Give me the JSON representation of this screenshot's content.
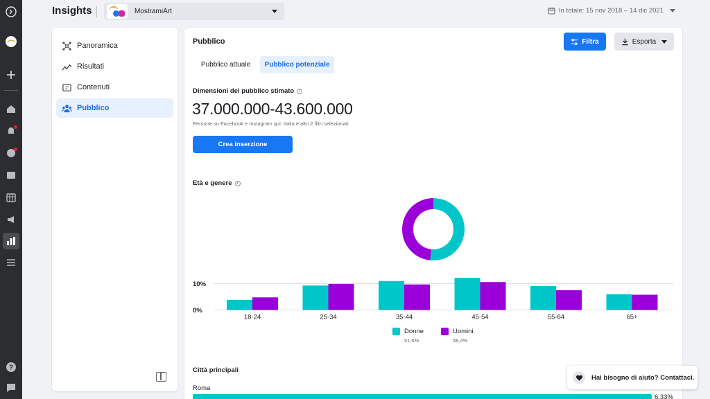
{
  "header": {
    "title": "Insights",
    "page_selector": {
      "name": "MostramiArt"
    },
    "date_range": "In totale: 15 nov 2018 – 14 dic 2021"
  },
  "sidebar": {
    "items": [
      {
        "label": "Panoramica",
        "icon": "overview-icon",
        "active": false
      },
      {
        "label": "Risultati",
        "icon": "results-icon",
        "active": false
      },
      {
        "label": "Contenuti",
        "icon": "content-icon",
        "active": false
      },
      {
        "label": "Pubblico",
        "icon": "audience-icon",
        "active": true
      }
    ]
  },
  "main": {
    "title": "Pubblico",
    "filter_label": "Filtra",
    "export_label": "Esporta",
    "tabs": [
      {
        "label": "Pubblico attuale",
        "active": false
      },
      {
        "label": "Pubblico potenziale",
        "active": true
      }
    ],
    "audience": {
      "title": "Dimensioni del pubblico stimato",
      "size": "37.000.000-43.600.000",
      "subtitle": "Persone su Facebook e Instagram qui: Italia e altri 2 filtri selezionati",
      "create_ad_label": "Crea inserzione"
    },
    "age_gender_title": "Età e genere",
    "cities": {
      "title": "Città principali",
      "items": [
        {
          "name": "Roma",
          "value": "6,33%",
          "share": 6.33
        }
      ]
    }
  },
  "chart_data": [
    {
      "type": "pie",
      "labels": [
        "Donne",
        "Uomini"
      ],
      "values": [
        51.6,
        48.4
      ]
    },
    {
      "type": "bar",
      "categories": [
        "18-24",
        "25-34",
        "35-44",
        "45-54",
        "55-64",
        "65+"
      ],
      "series": [
        {
          "name": "Donne",
          "pct": "51,6%",
          "color": "#00c5c9",
          "values": [
            3.8,
            9.3,
            11.0,
            12.2,
            9.1,
            6.0
          ]
        },
        {
          "name": "Uomini",
          "pct": "48,4%",
          "color": "#9b00d9",
          "values": [
            4.8,
            9.9,
            9.7,
            10.6,
            7.5,
            5.8
          ]
        }
      ],
      "y_ticks": [
        "0%",
        "10%"
      ],
      "ylim": [
        0,
        12.5
      ],
      "grid": true,
      "legend_position": "bottom"
    }
  ],
  "help": {
    "label": "Hai bisogno di aiuto? Contattaci."
  },
  "colors": {
    "accent": "#1877f2",
    "women": "#00c5c9",
    "men": "#9b00d9",
    "rail": "#2b2d30"
  }
}
